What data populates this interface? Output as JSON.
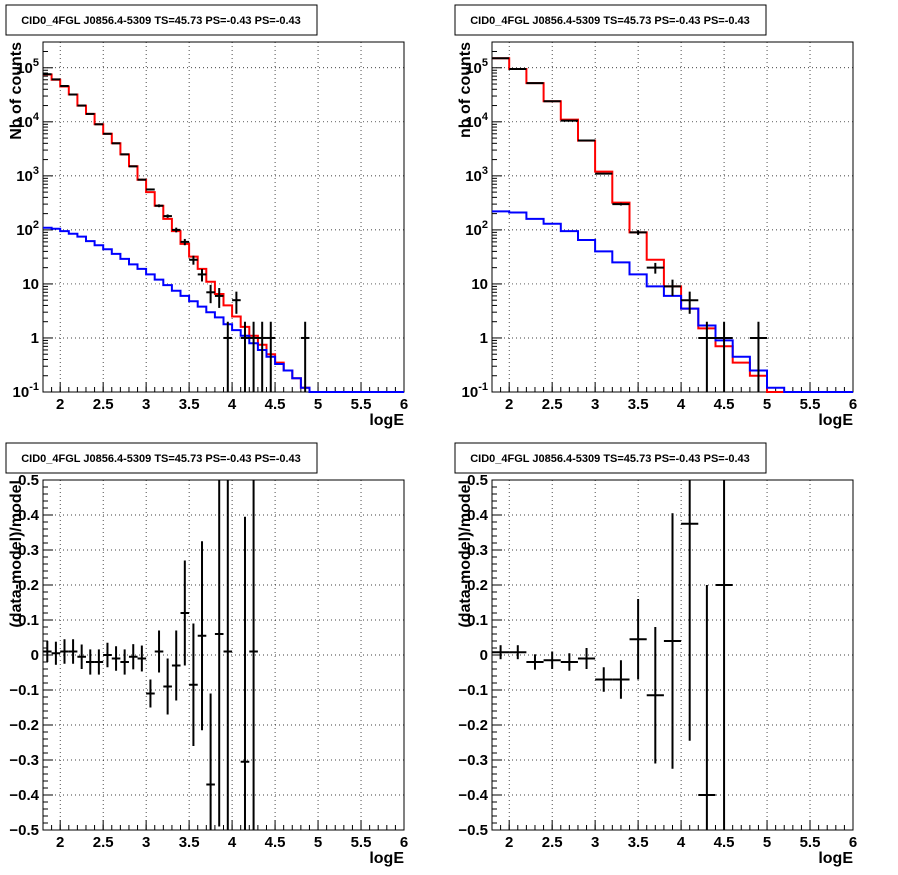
{
  "chart_data": [
    {
      "id": "spectrum-left",
      "type": "line",
      "title": "CID0_4FGL J0856.4-5309 TS=45.73 PS=-0.43 PS=-0.43",
      "xlabel": "logE",
      "ylabel": "Nb of counts",
      "yscale": "log",
      "xlim": [
        1.8,
        6.0
      ],
      "ylim": [
        0.1,
        300000
      ],
      "grid": true,
      "xticks": [
        "2",
        "2.5",
        "3",
        "3.5",
        "4",
        "4.5",
        "5",
        "5.5",
        "6"
      ],
      "yticks": [
        {
          "v": 0.1,
          "base": "10",
          "exp": "-1"
        },
        {
          "v": 1,
          "text": "1"
        },
        {
          "v": 10,
          "text": "10"
        },
        {
          "v": 100,
          "base": "10",
          "exp": "2"
        },
        {
          "v": 1000,
          "base": "10",
          "exp": "3"
        },
        {
          "v": 10000,
          "base": "10",
          "exp": "4"
        },
        {
          "v": 100000,
          "base": "10",
          "exp": "5"
        }
      ],
      "bin_width": 0.1,
      "series": [
        {
          "color": "#ff0000",
          "style": "step",
          "x": [
            1.85,
            1.95,
            2.05,
            2.15,
            2.25,
            2.35,
            2.45,
            2.55,
            2.65,
            2.75,
            2.85,
            2.95,
            3.05,
            3.15,
            3.25,
            3.35,
            3.45,
            3.55,
            3.65,
            3.75,
            3.85,
            3.95,
            4.05,
            4.15,
            4.25,
            4.35,
            4.45,
            4.55,
            4.65,
            4.75,
            4.85,
            4.95,
            5.05,
            5.15,
            5.25,
            5.35,
            5.45,
            5.55,
            5.65,
            5.75,
            5.85,
            5.95
          ],
          "values": [
            75000,
            60000,
            45000,
            32000,
            20000,
            14000,
            9000,
            6000,
            4000,
            2500,
            1500,
            850,
            500,
            280,
            160,
            95,
            55,
            32,
            19,
            11,
            6.5,
            4.0,
            2.5,
            1.6,
            1.1,
            0.75,
            0.5,
            0.35,
            0.25,
            0.18,
            0.12,
            0.1,
            0.1,
            0.1,
            0.1,
            0.1,
            0.1,
            0.1,
            0.1,
            0.1,
            0.1,
            0.1
          ]
        },
        {
          "color": "#0000ff",
          "style": "step",
          "x": [
            1.85,
            1.95,
            2.05,
            2.15,
            2.25,
            2.35,
            2.45,
            2.55,
            2.65,
            2.75,
            2.85,
            2.95,
            3.05,
            3.15,
            3.25,
            3.35,
            3.45,
            3.55,
            3.65,
            3.75,
            3.85,
            3.95,
            4.05,
            4.15,
            4.25,
            4.35,
            4.45,
            4.55,
            4.65,
            4.75,
            4.85,
            4.95,
            5.05,
            5.15,
            5.25,
            5.35,
            5.45,
            5.55,
            5.65,
            5.75,
            5.85,
            5.95
          ],
          "values": [
            110,
            105,
            95,
            85,
            75,
            62,
            52,
            44,
            36,
            29,
            23,
            19,
            15,
            12,
            9.5,
            7.5,
            6,
            4.8,
            3.8,
            3.0,
            2.4,
            1.8,
            1.4,
            1.1,
            0.8,
            0.6,
            0.45,
            0.33,
            0.25,
            0.18,
            0.12,
            0.1,
            0.1,
            0.1,
            0.1,
            0.1,
            0.1,
            0.1,
            0.1,
            0.1,
            0.1,
            0.1
          ]
        },
        {
          "color": "#000000",
          "style": "points",
          "x": [
            1.85,
            1.95,
            2.05,
            2.15,
            2.25,
            2.35,
            2.45,
            2.55,
            2.65,
            2.75,
            2.85,
            2.95,
            3.05,
            3.15,
            3.25,
            3.35,
            3.45,
            3.55,
            3.65,
            3.75,
            3.85,
            3.95,
            4.05,
            4.15,
            4.25,
            4.35,
            4.45,
            4.55,
            4.65,
            4.75,
            4.85
          ],
          "values": [
            76000,
            61000,
            46000,
            32000,
            20000,
            14000,
            9000,
            6000,
            4000,
            2500,
            1500,
            850,
            560,
            280,
            180,
            100,
            60,
            28,
            15,
            7,
            6,
            1,
            5,
            1,
            1,
            1,
            1,
            0,
            0,
            0,
            1
          ],
          "errors": [
            280,
            250,
            215,
            180,
            140,
            118,
            95,
            78,
            63,
            50,
            39,
            29,
            24,
            17,
            13,
            10,
            8,
            5.3,
            3.9,
            2.6,
            2.4,
            1,
            2.2,
            1,
            1,
            1,
            1,
            0,
            0,
            0,
            1
          ]
        }
      ]
    },
    {
      "id": "spectrum-right",
      "type": "line",
      "title": "CID0_4FGL J0856.4-5309 TS=45.73 PS=-0.43 PS=-0.43",
      "xlabel": "logE",
      "ylabel": "nb of counts",
      "yscale": "log",
      "xlim": [
        1.8,
        6.0
      ],
      "ylim": [
        0.1,
        300000
      ],
      "grid": true,
      "xticks": [
        "2",
        "2.5",
        "3",
        "3.5",
        "4",
        "4.5",
        "5",
        "5.5",
        "6"
      ],
      "yticks": [
        {
          "v": 0.1,
          "base": "10",
          "exp": "-1"
        },
        {
          "v": 1,
          "text": "1"
        },
        {
          "v": 10,
          "text": "10"
        },
        {
          "v": 100,
          "base": "10",
          "exp": "2"
        },
        {
          "v": 1000,
          "base": "10",
          "exp": "3"
        },
        {
          "v": 10000,
          "base": "10",
          "exp": "4"
        },
        {
          "v": 100000,
          "base": "10",
          "exp": "5"
        }
      ],
      "bin_width": 0.2,
      "series": [
        {
          "color": "#ff0000",
          "style": "step",
          "x": [
            1.9,
            2.1,
            2.3,
            2.5,
            2.7,
            2.9,
            3.1,
            3.3,
            3.5,
            3.7,
            3.9,
            4.1,
            4.3,
            4.5,
            4.7,
            4.9,
            5.1,
            5.3,
            5.5,
            5.7,
            5.9
          ],
          "values": [
            150000,
            95000,
            52000,
            24000,
            11000,
            4500,
            1200,
            320,
            90,
            28,
            9,
            3.5,
            1.5,
            0.7,
            0.35,
            0.2,
            0.1,
            0.1,
            0.1,
            0.1,
            0.1
          ]
        },
        {
          "color": "#0000ff",
          "style": "step",
          "x": [
            1.9,
            2.1,
            2.3,
            2.5,
            2.7,
            2.9,
            3.1,
            3.3,
            3.5,
            3.7,
            3.9,
            4.1,
            4.3,
            4.5,
            4.7,
            4.9,
            5.1,
            5.3,
            5.5,
            5.7,
            5.9
          ],
          "values": [
            220,
            210,
            160,
            130,
            95,
            65,
            40,
            25,
            15,
            9,
            6,
            3.5,
            1.7,
            0.9,
            0.45,
            0.25,
            0.12,
            0.1,
            0.1,
            0.1,
            0.1
          ]
        },
        {
          "color": "#000000",
          "style": "points",
          "x": [
            1.9,
            2.1,
            2.3,
            2.5,
            2.7,
            2.9,
            3.1,
            3.3,
            3.5,
            3.7,
            3.9,
            4.1,
            4.3,
            4.5,
            4.7,
            4.9
          ],
          "values": [
            150000,
            95000,
            52000,
            24000,
            10500,
            4500,
            1100,
            300,
            90,
            20,
            9,
            5,
            1,
            1,
            0,
            1
          ],
          "errors": [
            390,
            310,
            230,
            155,
            100,
            67,
            33,
            17,
            9.5,
            4.5,
            3,
            2.2,
            1,
            1,
            0,
            1
          ]
        }
      ]
    },
    {
      "id": "residual-left",
      "type": "scatter",
      "title": "CID0_4FGL J0856.4-5309 TS=45.73 PS=-0.43 PS=-0.43",
      "xlabel": "logE",
      "ylabel": "(data-model)/model",
      "yscale": "linear",
      "xlim": [
        1.8,
        6.0
      ],
      "ylim": [
        -0.5,
        0.5
      ],
      "grid": true,
      "xticks": [
        "2",
        "2.5",
        "3",
        "3.5",
        "4",
        "4.5",
        "5",
        "5.5",
        "6"
      ],
      "yticks": [
        {
          "v": -0.5,
          "text": "−0.5"
        },
        {
          "v": -0.4,
          "text": "−0.4"
        },
        {
          "v": -0.3,
          "text": "−0.3"
        },
        {
          "v": -0.2,
          "text": "−0.2"
        },
        {
          "v": -0.1,
          "text": "−0.1"
        },
        {
          "v": 0,
          "text": "0"
        },
        {
          "v": 0.1,
          "text": "0.1"
        },
        {
          "v": 0.2,
          "text": "0.2"
        },
        {
          "v": 0.3,
          "text": "0.3"
        },
        {
          "v": 0.4,
          "text": "0.4"
        },
        {
          "v": 0.5,
          "text": "0.5"
        }
      ],
      "bin_width": 0.1,
      "series": [
        {
          "color": "#000000",
          "style": "points",
          "x": [
            1.85,
            1.95,
            2.05,
            2.15,
            2.25,
            2.35,
            2.45,
            2.55,
            2.65,
            2.75,
            2.85,
            2.95,
            3.05,
            3.15,
            3.25,
            3.35,
            3.45,
            3.55,
            3.65,
            3.75,
            3.85,
            3.95,
            4.15,
            4.25
          ],
          "values": [
            0.01,
            0.005,
            0.01,
            0.01,
            -0.005,
            -0.02,
            -0.02,
            0.0,
            -0.01,
            -0.02,
            -0.005,
            -0.01,
            -0.11,
            0.01,
            -0.09,
            -0.03,
            0.12,
            -0.085,
            0.055,
            -0.37,
            0.06,
            0.01,
            -0.305,
            0.01
          ],
          "errors": [
            0.03,
            0.033,
            0.035,
            0.035,
            0.035,
            0.036,
            0.036,
            0.035,
            0.035,
            0.036,
            0.036,
            0.037,
            0.04,
            0.06,
            0.08,
            0.1,
            0.15,
            0.175,
            0.27,
            0.26,
            0.55,
            0.55,
            0.7,
            0.7
          ]
        }
      ]
    },
    {
      "id": "residual-right",
      "type": "scatter",
      "title": "CID0_4FGL J0856.4-5309 TS=45.73 PS=-0.43 PS=-0.43",
      "xlabel": "logE",
      "ylabel": "(data-model)/model",
      "yscale": "linear",
      "xlim": [
        1.8,
        6.0
      ],
      "ylim": [
        -0.5,
        0.5
      ],
      "grid": true,
      "xticks": [
        "2",
        "2.5",
        "3",
        "3.5",
        "4",
        "4.5",
        "5",
        "5.5",
        "6"
      ],
      "yticks": [
        {
          "v": -0.5,
          "text": "−0.5"
        },
        {
          "v": -0.4,
          "text": "−0.4"
        },
        {
          "v": -0.3,
          "text": "−0.3"
        },
        {
          "v": -0.2,
          "text": "−0.2"
        },
        {
          "v": -0.1,
          "text": "−0.1"
        },
        {
          "v": 0,
          "text": "0"
        },
        {
          "v": 0.1,
          "text": "0.1"
        },
        {
          "v": 0.2,
          "text": "0.2"
        },
        {
          "v": 0.3,
          "text": "0.3"
        },
        {
          "v": 0.4,
          "text": "0.4"
        },
        {
          "v": 0.5,
          "text": "0.5"
        }
      ],
      "bin_width": 0.2,
      "series": [
        {
          "color": "#000000",
          "style": "points",
          "x": [
            1.9,
            2.1,
            2.3,
            2.5,
            2.7,
            2.9,
            3.1,
            3.3,
            3.5,
            3.7,
            3.9,
            4.1,
            4.3,
            4.5
          ],
          "values": [
            0.008,
            0.008,
            -0.02,
            -0.015,
            -0.02,
            -0.01,
            -0.07,
            -0.07,
            0.045,
            -0.115,
            0.04,
            0.375,
            -0.4,
            0.2
          ],
          "errors": [
            0.02,
            0.02,
            0.022,
            0.025,
            0.025,
            0.03,
            0.035,
            0.055,
            0.115,
            0.195,
            0.365,
            0.62,
            0.6,
            0.75
          ]
        }
      ]
    }
  ]
}
